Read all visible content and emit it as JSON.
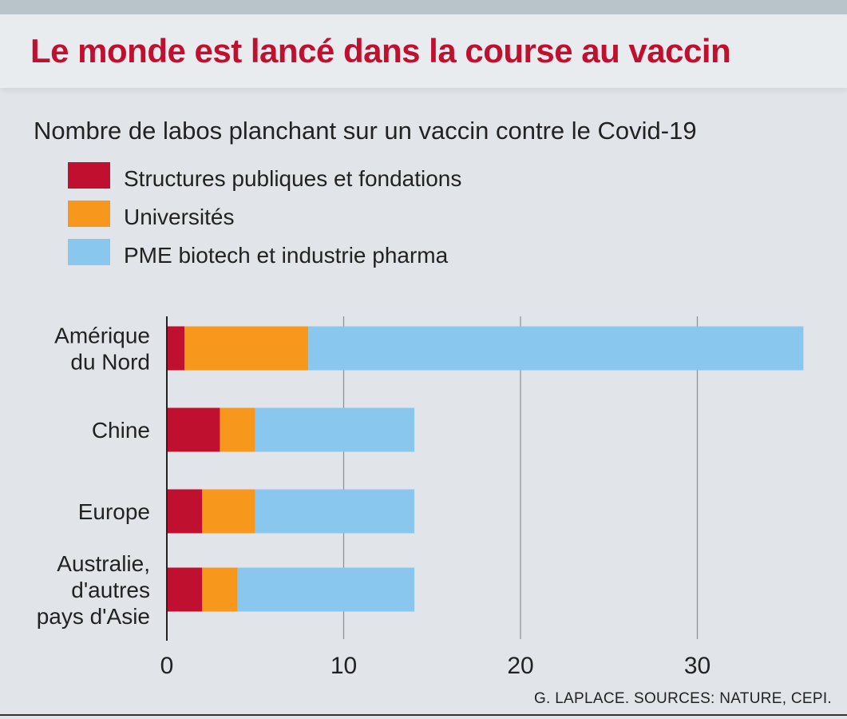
{
  "header": {
    "title": "Le monde est lancé dans la course au vaccin"
  },
  "chart_data": {
    "type": "bar",
    "orientation": "horizontal",
    "stacked": true,
    "title": "Le monde est lancé dans la course au vaccin",
    "subtitle": "Nombre de labos planchant sur un vaccin contre le Covid-19",
    "categories": [
      [
        "Amérique",
        "du Nord"
      ],
      [
        "Chine"
      ],
      [
        "Europe"
      ],
      [
        "Australie,",
        "d'autres",
        "pays d'Asie"
      ]
    ],
    "series": [
      {
        "name": "Structures publiques et fondations",
        "color": "#c0102f",
        "values": [
          1,
          3,
          2,
          2
        ]
      },
      {
        "name": "Universités",
        "color": "#f7981d",
        "values": [
          7,
          2,
          3,
          2
        ]
      },
      {
        "name": "PME biotech et industrie pharma",
        "color": "#89c7ee",
        "values": [
          28,
          9,
          9,
          10
        ]
      }
    ],
    "xlim": [
      0,
      36
    ],
    "xticks": [
      "0",
      "10",
      "20",
      "30"
    ],
    "xtick_values": [
      0,
      10,
      20,
      30
    ],
    "grid": true,
    "legend_position": "top-left",
    "source": "G. LAPLACE. SOURCES: NATURE, CEPI."
  }
}
